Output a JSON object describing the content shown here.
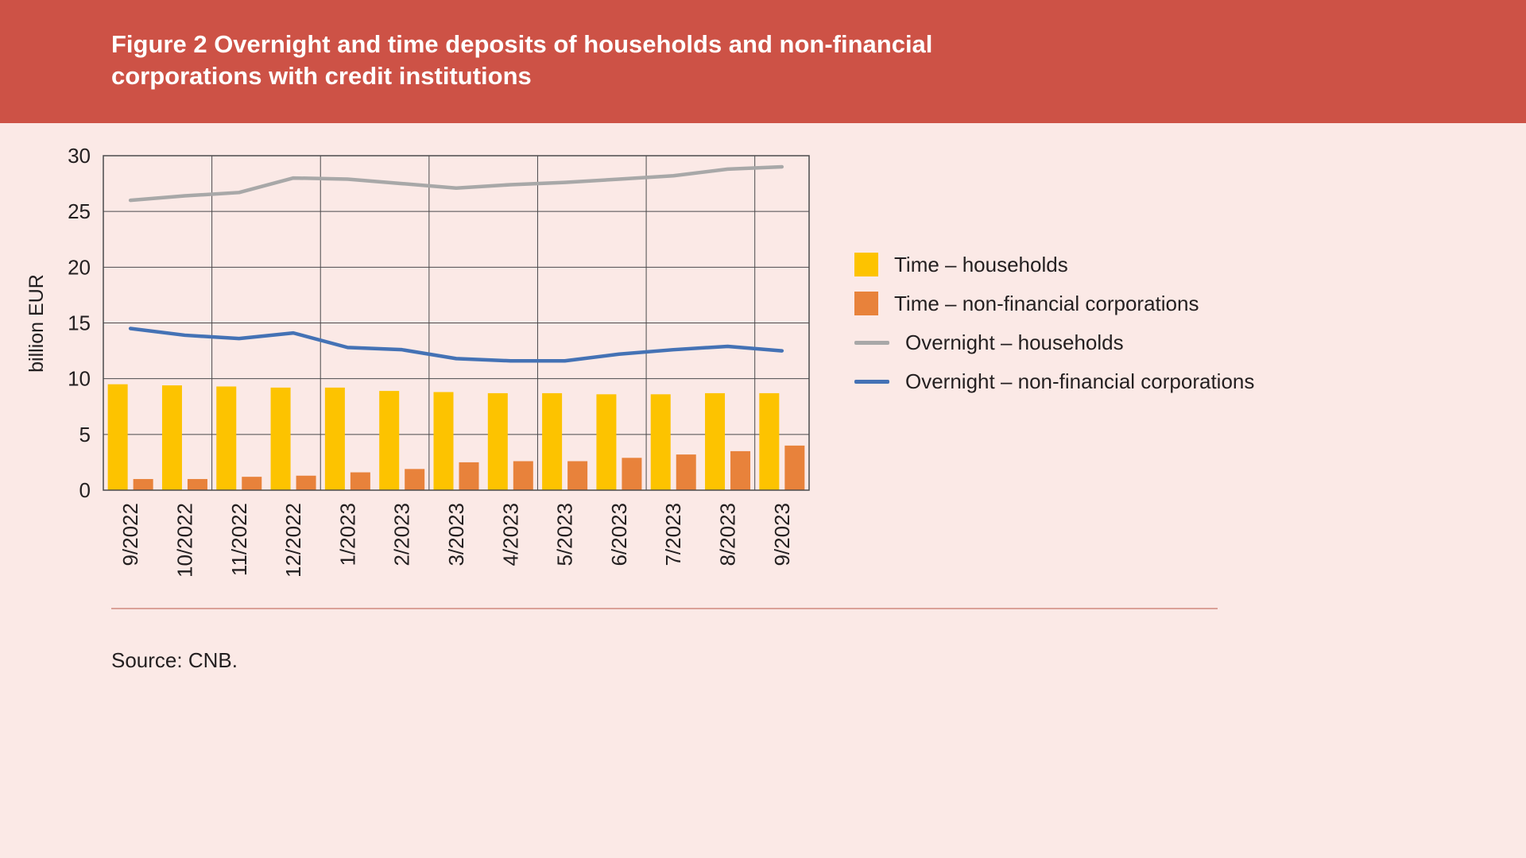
{
  "header": {
    "title_line1": "Figure 2 Overnight and time deposits of households and non-financial",
    "title_line2": "corporations with credit institutions"
  },
  "source": {
    "text": "Source: CNB."
  },
  "colors": {
    "header_band": "#CD5246",
    "page_background": "#FBE9E6",
    "separator": "#DBA198"
  },
  "chart_data": {
    "type": "combo",
    "subtypes": [
      "bar",
      "line"
    ],
    "title": "Figure 2 Overnight and time deposits of households and non-financial corporations with credit institutions",
    "xlabel": "",
    "ylabel": "billion EUR",
    "ylim": [
      0,
      30
    ],
    "yticks": [
      0,
      5,
      10,
      15,
      20,
      25,
      30
    ],
    "grid": true,
    "grid_color": "#4A4A4C",
    "text_color": "#231F20",
    "legend_position": "right",
    "categories": [
      "9/2022",
      "10/2022",
      "11/2022",
      "12/2022",
      "1/2023",
      "2/2023",
      "3/2023",
      "4/2023",
      "5/2023",
      "6/2023",
      "7/2023",
      "8/2023",
      "9/2023"
    ],
    "series": [
      {
        "name": "Time – households",
        "kind": "bar",
        "color": "#FDC300",
        "values": [
          9.5,
          9.4,
          9.3,
          9.2,
          9.2,
          8.9,
          8.8,
          8.7,
          8.7,
          8.6,
          8.6,
          8.7,
          8.7
        ]
      },
      {
        "name": "Time – non-financial corporations",
        "kind": "bar",
        "color": "#E8823B",
        "values": [
          1.0,
          1.0,
          1.2,
          1.3,
          1.6,
          1.9,
          2.5,
          2.6,
          2.6,
          2.9,
          3.2,
          3.5,
          4.0
        ]
      },
      {
        "name": "Overnight – households",
        "kind": "line",
        "color": "#A8A8A8",
        "values": [
          26.0,
          26.4,
          26.7,
          28.0,
          27.9,
          27.5,
          27.1,
          27.4,
          27.6,
          27.9,
          28.2,
          28.8,
          29.0
        ]
      },
      {
        "name": "Overnight – non-financial corporations",
        "kind": "line",
        "color": "#4472B5",
        "values": [
          14.5,
          13.9,
          13.6,
          14.1,
          12.8,
          12.6,
          11.8,
          11.6,
          11.6,
          12.2,
          12.6,
          12.9,
          12.5
        ]
      }
    ]
  }
}
